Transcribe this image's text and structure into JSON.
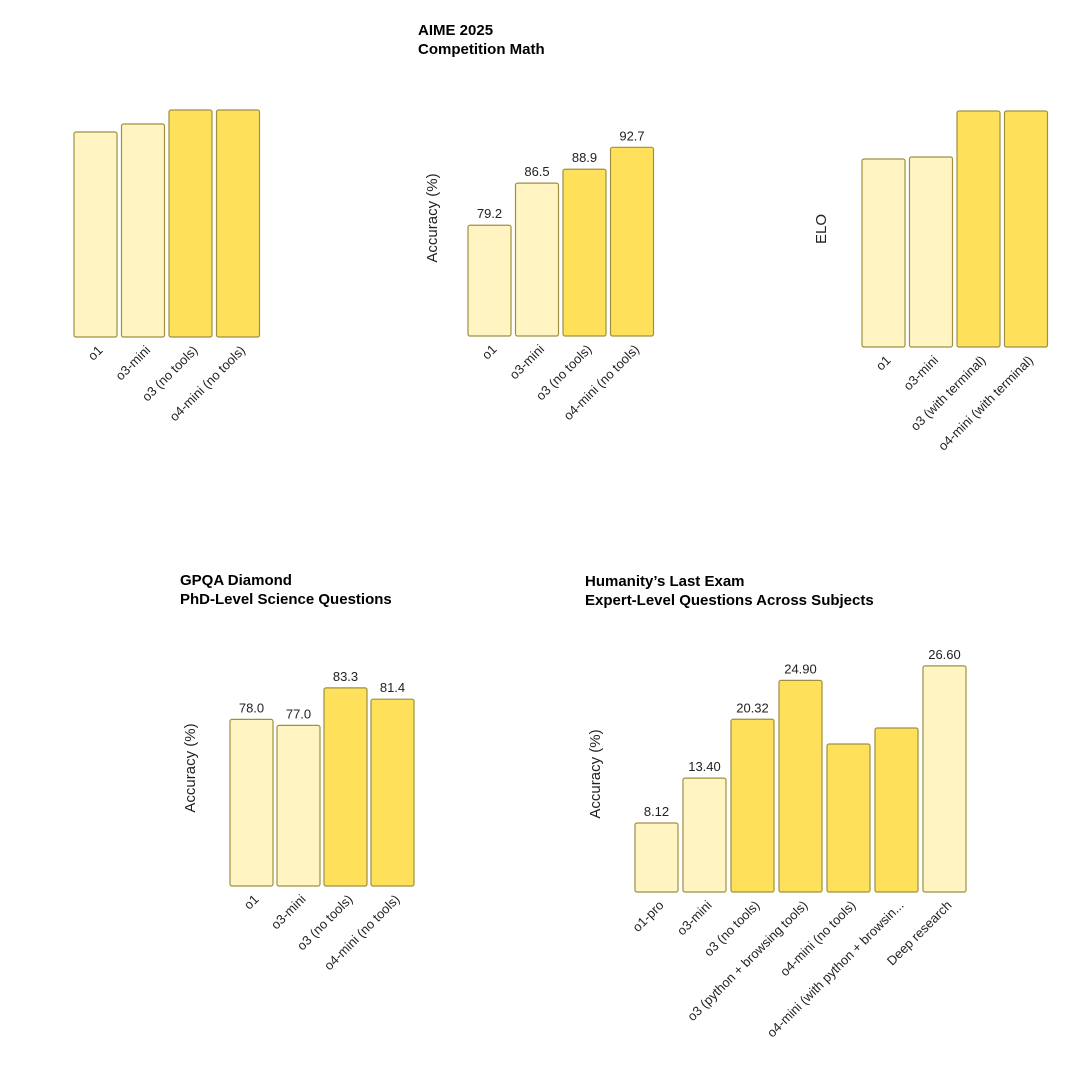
{
  "colors": {
    "light": "#fff4c2",
    "dark": "#fee05a",
    "stroke": "#9e9040"
  },
  "chart_data": [
    {
      "type": "bar",
      "title": "",
      "subtitle": "",
      "ylabel": "",
      "categories": [
        "o1",
        "o3-mini",
        "o3 (no tools)",
        "o4-mini (no tools)"
      ],
      "values": [
        null,
        null,
        null,
        null
      ],
      "labels": [
        "",
        "",
        "",
        ""
      ],
      "fill": [
        "light",
        "light",
        "dark",
        "dark"
      ]
    },
    {
      "type": "bar",
      "title": "AIME 2025",
      "subtitle": "Competition Math",
      "ylabel": "Accuracy (%)",
      "categories": [
        "o1",
        "o3-mini",
        "o3 (no tools)",
        "o4-mini (no tools)"
      ],
      "values": [
        79.2,
        86.5,
        88.9,
        92.7
      ],
      "labels": [
        "79.2",
        "86.5",
        "88.9",
        "92.7"
      ],
      "fill": [
        "light",
        "light",
        "dark",
        "dark"
      ]
    },
    {
      "type": "bar",
      "title": "",
      "subtitle": "",
      "ylabel": "ELO",
      "categories": [
        "o1",
        "o3-mini",
        "o3 (with terminal)",
        "o4-mini (with terminal)"
      ],
      "values": [
        null,
        null,
        null,
        null
      ],
      "labels": [
        "",
        "",
        "",
        ""
      ],
      "fill": [
        "light",
        "light",
        "dark",
        "dark"
      ]
    },
    {
      "type": "bar",
      "title": "GPQA Diamond",
      "subtitle": "PhD-Level Science Questions",
      "ylabel": "Accuracy (%)",
      "categories": [
        "o1",
        "o3-mini",
        "o3 (no tools)",
        "o4-mini (no tools)"
      ],
      "values": [
        78.0,
        77.0,
        83.3,
        81.4
      ],
      "labels": [
        "78.0",
        "77.0",
        "83.3",
        "81.4"
      ],
      "fill": [
        "light",
        "light",
        "dark",
        "dark"
      ]
    },
    {
      "type": "bar",
      "title": "Humanity’s Last Exam",
      "subtitle": "Expert-Level Questions Across Subjects",
      "ylabel": "Accuracy (%)",
      "categories": [
        "o1-pro",
        "o3-mini",
        "o3 (no tools)",
        "o3 (python + browsing tools)",
        "o4-mini (no tools)",
        "o4-mini (with python + browsin...",
        "Deep research"
      ],
      "values": [
        8.12,
        13.4,
        20.32,
        24.9,
        null,
        null,
        26.6
      ],
      "labels": [
        "8.12",
        "13.40",
        "20.32",
        "24.90",
        "",
        "",
        "26.60"
      ],
      "fill": [
        "light",
        "light",
        "dark",
        "dark",
        "dark",
        "dark",
        "light"
      ]
    }
  ]
}
